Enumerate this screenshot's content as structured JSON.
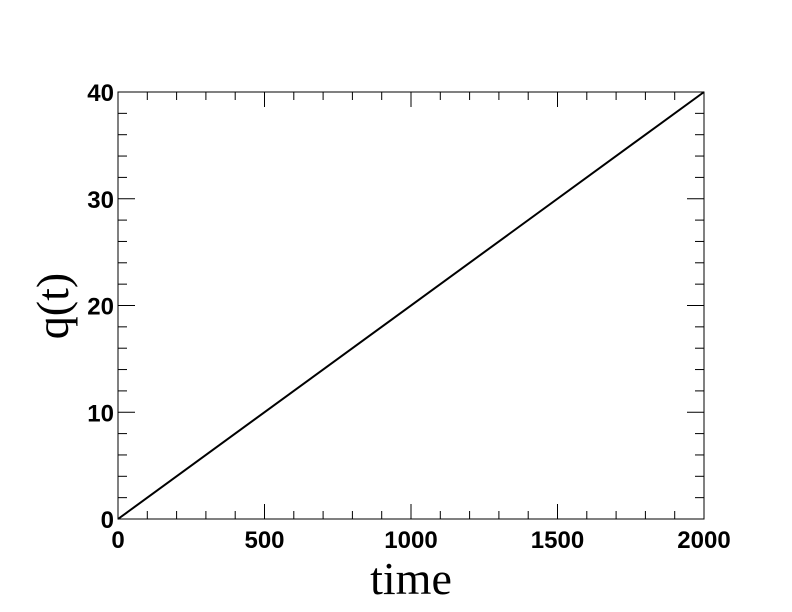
{
  "chart_data": {
    "type": "line",
    "x": [
      0,
      2000
    ],
    "series": [
      {
        "color": "#000000",
        "values": [
          0,
          40
        ]
      }
    ],
    "xlabel": "time",
    "ylabel": "q(t)",
    "xlim": [
      0,
      2000
    ],
    "ylim": [
      0,
      40
    ],
    "xticks": [
      0,
      500,
      1000,
      1500,
      2000
    ],
    "yticks": [
      0,
      10,
      20,
      30,
      40
    ]
  }
}
